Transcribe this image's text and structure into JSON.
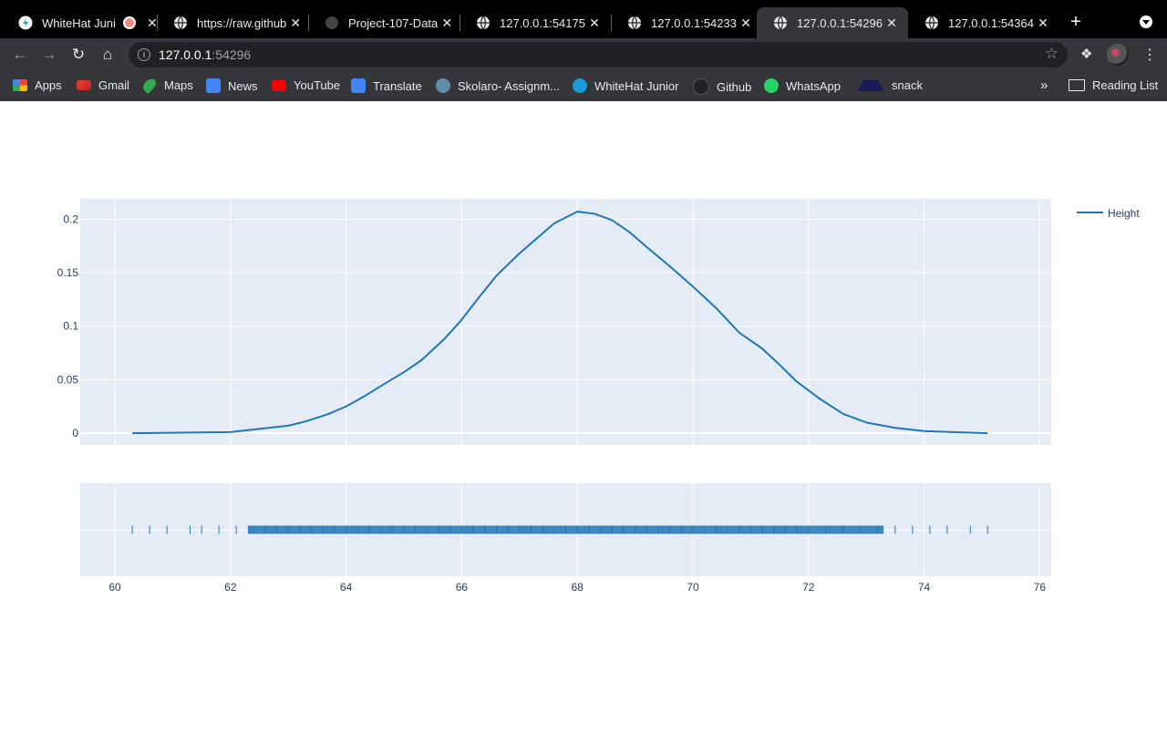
{
  "browser": {
    "tabs": [
      {
        "title": "WhiteHat Juni",
        "icon": "whitehat-icon",
        "recording": true
      },
      {
        "title": "https://raw.github",
        "icon": "globe-icon"
      },
      {
        "title": "Project-107-Data",
        "icon": "github-icon"
      },
      {
        "title": "127.0.0.1:54175",
        "icon": "globe-icon"
      },
      {
        "title": "127.0.0.1:54233",
        "icon": "globe-icon"
      },
      {
        "title": "127.0.0.1:54296",
        "icon": "globe-icon",
        "active": true
      },
      {
        "title": "127.0.0.1:54364",
        "icon": "globe-icon"
      }
    ],
    "address": {
      "host": "127.0.0.1",
      "port": ":54296"
    },
    "bookmarks": [
      {
        "label": "Apps",
        "icon": "apps-grid-icon"
      },
      {
        "label": "Gmail",
        "icon": "gmail-icon"
      },
      {
        "label": "Maps",
        "icon": "maps-icon"
      },
      {
        "label": "News",
        "icon": "news-icon"
      },
      {
        "label": "YouTube",
        "icon": "youtube-icon"
      },
      {
        "label": "Translate",
        "icon": "translate-icon"
      },
      {
        "label": "Skolaro- Assignm...",
        "icon": "skolaro-icon"
      },
      {
        "label": "WhiteHat Junior",
        "icon": "whitehat-icon"
      },
      {
        "label": "Github",
        "icon": "github-icon"
      },
      {
        "label": "WhatsApp",
        "icon": "whatsapp-icon"
      },
      {
        "label": "snack",
        "icon": "snack-icon"
      }
    ],
    "overflow": "»",
    "reading_list": "Reading List"
  },
  "chart_data": {
    "type": "line",
    "series": [
      {
        "name": "Height",
        "color": "#1f77b4",
        "x": [
          60.3,
          62.0,
          62.5,
          63.0,
          63.3,
          63.7,
          64.0,
          64.3,
          64.6,
          65.0,
          65.3,
          65.7,
          66.0,
          66.3,
          66.6,
          67.0,
          67.3,
          67.6,
          68.0,
          68.3,
          68.6,
          68.9,
          69.2,
          69.6,
          70.0,
          70.4,
          70.8,
          71.2,
          71.5,
          71.8,
          72.2,
          72.6,
          73.0,
          73.5,
          74.0,
          74.5,
          75.1
        ],
        "y": [
          0,
          0.001,
          0.004,
          0.007,
          0.011,
          0.018,
          0.025,
          0.034,
          0.044,
          0.057,
          0.068,
          0.088,
          0.106,
          0.127,
          0.147,
          0.168,
          0.182,
          0.196,
          0.207,
          0.205,
          0.199,
          0.188,
          0.174,
          0.156,
          0.137,
          0.117,
          0.094,
          0.079,
          0.064,
          0.048,
          0.032,
          0.018,
          0.01,
          0.005,
          0.002,
          0.001,
          0
        ]
      }
    ],
    "rug_x": [
      60.3,
      60.6,
      60.9,
      61.3,
      61.5,
      61.8,
      62.1,
      62.4,
      62.6,
      62.8,
      63.0,
      63.2,
      63.4,
      63.6,
      63.8,
      64.0,
      64.2,
      64.4,
      64.6,
      64.8,
      65.0,
      65.2,
      65.4,
      65.6,
      65.8,
      66.0,
      66.2,
      66.4,
      66.6,
      66.8,
      67.0,
      67.2,
      67.4,
      67.6,
      67.8,
      68.0,
      68.2,
      68.4,
      68.6,
      68.8,
      69.0,
      69.2,
      69.4,
      69.6,
      69.8,
      70.0,
      70.2,
      70.4,
      70.6,
      70.8,
      71.0,
      71.2,
      71.4,
      71.6,
      71.8,
      72.0,
      72.3,
      72.6,
      72.9,
      73.2,
      73.5,
      73.8,
      74.1,
      74.4,
      74.8,
      75.1
    ],
    "x_ticks": [
      "60",
      "62",
      "64",
      "66",
      "68",
      "70",
      "72",
      "74",
      "76"
    ],
    "y_ticks": [
      "0",
      "0.05",
      "0.1",
      "0.15",
      "0.2"
    ],
    "xlim": [
      59.4,
      76.2
    ],
    "ylim": [
      -0.011,
      0.219
    ],
    "legend_position": "top-right",
    "grid": true,
    "background": "#e5ecf6"
  }
}
